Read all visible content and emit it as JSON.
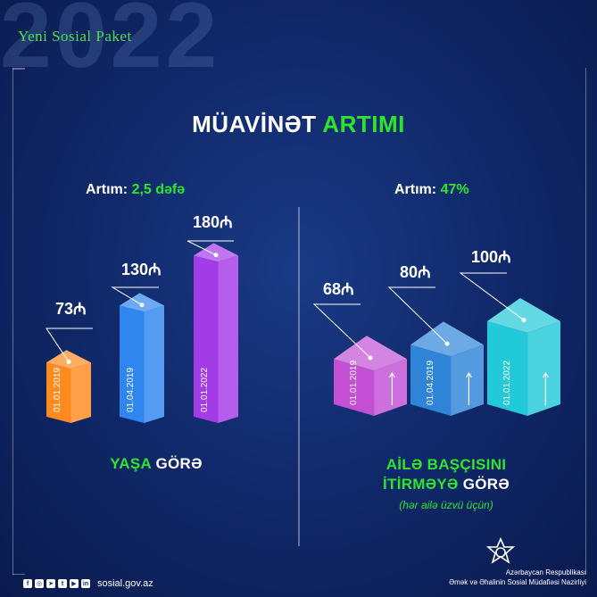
{
  "header": {
    "year": "2022",
    "brand": "Yeni Sosial Paket"
  },
  "title": {
    "part1": "MÜAVİNƏT",
    "part2": "ARTIMI"
  },
  "colors": {
    "accent_green": "#2ee52e",
    "background": "#112a6c"
  },
  "chart_data": [
    {
      "type": "bar",
      "growth_label": "Artım:",
      "growth_value": "2,5 dəfə",
      "categories": [
        "01.01.2019",
        "01.04.2019",
        "01.01.2022"
      ],
      "values": [
        73,
        130,
        180
      ],
      "value_labels": [
        "73₼",
        "130₼",
        "180₼"
      ],
      "colors": [
        "#ff8a1f",
        "#2f86ee",
        "#a33be6"
      ],
      "label_part1": "YAŞA",
      "label_part2": "GÖRƏ"
    },
    {
      "type": "bar",
      "growth_label": "Artım:",
      "growth_value": "47%",
      "categories": [
        "01.01.2019",
        "01.04.2019",
        "01.01.2022"
      ],
      "values": [
        68,
        80,
        100
      ],
      "value_labels": [
        "68₼",
        "80₼",
        "100₼"
      ],
      "colors": [
        "#c24fd4",
        "#2f84d8",
        "#22c9d8"
      ],
      "label_line1_part1": "AİLƏ BAŞÇISINI",
      "label_line2_part1": "İTİRMƏYƏ",
      "label_line2_part2": "GÖRƏ",
      "note": "(hər ailə üzvü üçün)"
    }
  ],
  "footer": {
    "social_icons": [
      "facebook-icon",
      "instagram-icon",
      "telegram-icon",
      "twitter-icon",
      "youtube-icon",
      "linkedin-icon"
    ],
    "website": "sosial.gov.az",
    "ministry_line1": "Azərbaycan Respublikası",
    "ministry_line2": "Əmək və Əhalinin Sosial Müdafiəsi Nazirliyi"
  }
}
